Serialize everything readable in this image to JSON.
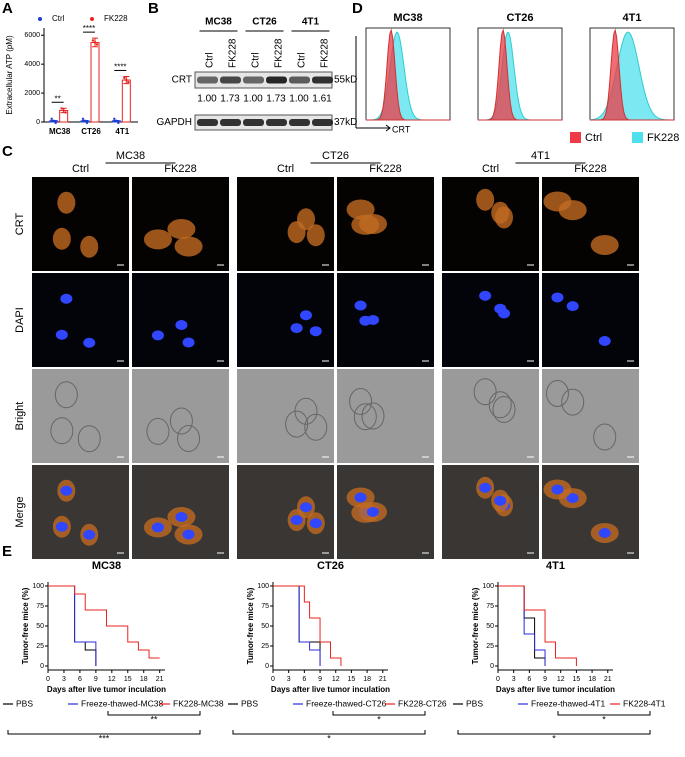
{
  "panel_labels": [
    "A",
    "B",
    "C",
    "D",
    "E"
  ],
  "chart_data": [
    {
      "type": "bar",
      "ylabel": "Extracellular ATP (pM)",
      "categories": [
        "MC38",
        "CT26",
        "4T1"
      ],
      "series": [
        {
          "name": "Ctrl",
          "color": "#1f3fd0",
          "values": [
            80,
            80,
            80
          ],
          "errors": [
            20,
            20,
            20
          ]
        },
        {
          "name": "FK228",
          "color": "#e8231f",
          "values": [
            800,
            5500,
            2900
          ],
          "errors": [
            150,
            300,
            250
          ]
        }
      ],
      "annotations": [
        "**",
        "****",
        "****"
      ],
      "ylim": [
        0,
        6500
      ],
      "yticks": [
        0,
        2000,
        4000,
        6000
      ]
    },
    {
      "type": "line",
      "title": "MC38",
      "xlabel": "Days after live tumor inculation",
      "ylabel": "Tumor-free mice (%)",
      "series": [
        {
          "name": "PBS",
          "color": "#000000",
          "x": [
            0,
            5,
            5,
            7,
            7,
            9,
            9
          ],
          "values": [
            100,
            100,
            30,
            30,
            20,
            20,
            0
          ]
        },
        {
          "name": "Freeze-thawed-MC38",
          "color": "#2b2bd6",
          "x": [
            0,
            5,
            5,
            9,
            9
          ],
          "values": [
            100,
            100,
            30,
            30,
            0
          ]
        },
        {
          "name": "FK228-MC38",
          "color": "#e8231f",
          "x": [
            0,
            5,
            5,
            7,
            7,
            11,
            11,
            15,
            15,
            17,
            17,
            19,
            19,
            21
          ],
          "values": [
            100,
            100,
            90,
            90,
            70,
            70,
            50,
            50,
            30,
            30,
            20,
            20,
            10,
            10
          ]
        }
      ],
      "annotations": [
        "**",
        "***"
      ],
      "xlim": [
        0,
        22
      ],
      "xticks": [
        0,
        3,
        6,
        9,
        12,
        15,
        18,
        21
      ],
      "ylim": [
        -5,
        105
      ],
      "yticks": [
        0,
        25,
        50,
        75,
        100
      ]
    },
    {
      "type": "line",
      "title": "CT26",
      "xlabel": "Days after live tumor inculation",
      "ylabel": "Tumor-free mice (%)",
      "series": [
        {
          "name": "PBS",
          "color": "#000000",
          "x": [
            0,
            5,
            5,
            9,
            9
          ],
          "values": [
            100,
            100,
            30,
            30,
            0
          ]
        },
        {
          "name": "Freeze-thawed-CT26",
          "color": "#2b2bd6",
          "x": [
            0,
            5,
            5,
            7,
            7,
            9,
            9
          ],
          "values": [
            100,
            100,
            30,
            30,
            20,
            20,
            0
          ]
        },
        {
          "name": "FK228-CT26",
          "color": "#e8231f",
          "x": [
            0,
            6,
            6,
            7,
            7,
            9,
            9,
            11,
            11,
            13,
            13
          ],
          "values": [
            100,
            100,
            80,
            80,
            60,
            60,
            30,
            30,
            10,
            10,
            0
          ]
        }
      ],
      "annotations": [
        "*",
        "*"
      ],
      "xlim": [
        0,
        22
      ],
      "xticks": [
        0,
        3,
        6,
        9,
        12,
        15,
        18,
        21
      ],
      "ylim": [
        -5,
        105
      ],
      "yticks": [
        0,
        25,
        50,
        75,
        100
      ]
    },
    {
      "type": "line",
      "title": "4T1",
      "xlabel": "Days after live tumor inculation",
      "ylabel": "Tumor-free mice (%)",
      "series": [
        {
          "name": "PBS",
          "color": "#000000",
          "x": [
            0,
            5,
            5,
            7,
            7,
            9,
            9
          ],
          "values": [
            100,
            100,
            60,
            60,
            10,
            10,
            0
          ]
        },
        {
          "name": "Freeze-thawed-4T1",
          "color": "#2b2bd6",
          "x": [
            0,
            5,
            5,
            7,
            7,
            9,
            9
          ],
          "values": [
            100,
            100,
            40,
            40,
            20,
            20,
            0
          ]
        },
        {
          "name": "FK228-4T1",
          "color": "#e8231f",
          "x": [
            0,
            5,
            5,
            9,
            9,
            11,
            11,
            15,
            15
          ],
          "values": [
            100,
            100,
            70,
            70,
            30,
            30,
            10,
            10,
            0
          ]
        }
      ],
      "annotations": [
        "*",
        "*"
      ],
      "xlim": [
        0,
        22
      ],
      "xticks": [
        0,
        3,
        6,
        9,
        12,
        15,
        18,
        21
      ],
      "ylim": [
        -5,
        105
      ],
      "yticks": [
        0,
        25,
        50,
        75,
        100
      ]
    }
  ],
  "blot": {
    "groups": [
      "MC38",
      "CT26",
      "4T1"
    ],
    "lanes": [
      "Ctrl",
      "FK228",
      "Ctrl",
      "FK228",
      "Ctrl",
      "FK228"
    ],
    "proteins": [
      "CRT",
      "GAPDH"
    ],
    "sizes": [
      "55kD",
      "37kD"
    ],
    "quantification": [
      "1.00",
      "1.73",
      "1.00",
      "1.73",
      "1.00",
      "1.61"
    ]
  },
  "flow": {
    "titles": [
      "MC38",
      "CT26",
      "4T1"
    ],
    "axis_label": "CRT",
    "legend": [
      {
        "name": "Ctrl",
        "color": "#ee3b45"
      },
      {
        "name": "FK228",
        "color": "#4fe0ee"
      }
    ]
  },
  "microscopy": {
    "groups": [
      {
        "name": "MC38",
        "conditions": [
          "Ctrl",
          "FK228"
        ]
      },
      {
        "name": "CT26",
        "conditions": [
          "Ctrl",
          "FK228"
        ]
      },
      {
        "name": "4T1",
        "conditions": [
          "Ctrl",
          "FK228"
        ]
      }
    ],
    "rows": [
      "CRT",
      "DAPI",
      "Bright",
      "Merge"
    ]
  }
}
